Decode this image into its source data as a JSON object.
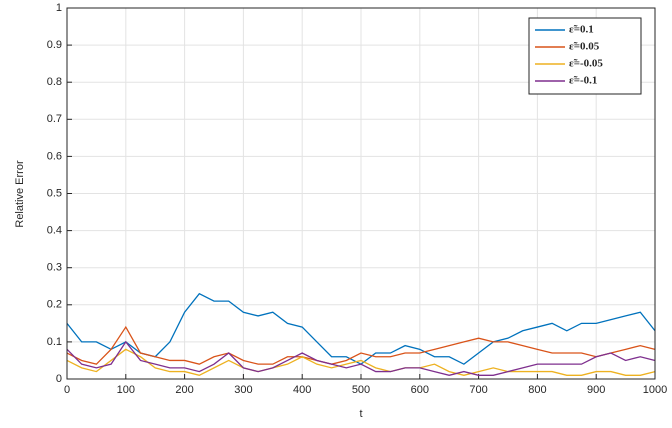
{
  "chart_data": {
    "type": "line",
    "xlabel": "t",
    "ylabel": "Relative Error",
    "x": [
      0,
      25,
      50,
      75,
      100,
      125,
      150,
      175,
      200,
      225,
      250,
      275,
      300,
      325,
      350,
      375,
      400,
      425,
      450,
      475,
      500,
      525,
      550,
      575,
      600,
      625,
      650,
      675,
      700,
      725,
      750,
      775,
      800,
      825,
      850,
      875,
      900,
      925,
      950,
      975,
      1000
    ],
    "series": [
      {
        "name": "ε̃=0.1",
        "color": "#0072bd",
        "values": [
          0.15,
          0.1,
          0.1,
          0.08,
          0.1,
          0.07,
          0.06,
          0.1,
          0.18,
          0.23,
          0.21,
          0.21,
          0.18,
          0.17,
          0.18,
          0.15,
          0.14,
          0.1,
          0.06,
          0.06,
          0.04,
          0.07,
          0.07,
          0.09,
          0.08,
          0.06,
          0.06,
          0.04,
          0.07,
          0.1,
          0.11,
          0.13,
          0.14,
          0.15,
          0.13,
          0.15,
          0.15,
          0.16,
          0.17,
          0.18,
          0.13
        ]
      },
      {
        "name": "ε̃=0.05",
        "color": "#d95319",
        "values": [
          0.07,
          0.05,
          0.04,
          0.08,
          0.14,
          0.07,
          0.06,
          0.05,
          0.05,
          0.04,
          0.06,
          0.07,
          0.05,
          0.04,
          0.04,
          0.06,
          0.06,
          0.05,
          0.04,
          0.05,
          0.07,
          0.06,
          0.06,
          0.07,
          0.07,
          0.08,
          0.09,
          0.1,
          0.11,
          0.1,
          0.1,
          0.09,
          0.08,
          0.07,
          0.07,
          0.07,
          0.06,
          0.07,
          0.08,
          0.09,
          0.08
        ]
      },
      {
        "name": "ε̃=-0.05",
        "color": "#edb120",
        "values": [
          0.05,
          0.03,
          0.02,
          0.05,
          0.08,
          0.06,
          0.03,
          0.02,
          0.02,
          0.01,
          0.03,
          0.05,
          0.03,
          0.02,
          0.03,
          0.04,
          0.06,
          0.04,
          0.03,
          0.04,
          0.05,
          0.03,
          0.02,
          0.03,
          0.03,
          0.04,
          0.02,
          0.01,
          0.02,
          0.03,
          0.02,
          0.02,
          0.02,
          0.02,
          0.01,
          0.01,
          0.02,
          0.02,
          0.01,
          0.01,
          0.02
        ]
      },
      {
        "name": "ε̃=-0.1",
        "color": "#7e2f8e",
        "values": [
          0.08,
          0.04,
          0.03,
          0.04,
          0.1,
          0.05,
          0.04,
          0.03,
          0.03,
          0.02,
          0.04,
          0.07,
          0.03,
          0.02,
          0.03,
          0.05,
          0.07,
          0.05,
          0.04,
          0.03,
          0.04,
          0.02,
          0.02,
          0.03,
          0.03,
          0.02,
          0.01,
          0.02,
          0.01,
          0.01,
          0.02,
          0.03,
          0.04,
          0.04,
          0.04,
          0.04,
          0.06,
          0.07,
          0.05,
          0.06,
          0.05
        ]
      }
    ],
    "xlim": [
      0,
      1000
    ],
    "xticks": [
      0,
      100,
      200,
      300,
      400,
      500,
      600,
      700,
      800,
      900,
      1000
    ],
    "ylim": [
      0,
      1
    ],
    "yticks": [
      0,
      0.1,
      0.2,
      0.3,
      0.4,
      0.5,
      0.6,
      0.7,
      0.8,
      0.9,
      1
    ],
    "grid": true,
    "legend": "northeast"
  }
}
